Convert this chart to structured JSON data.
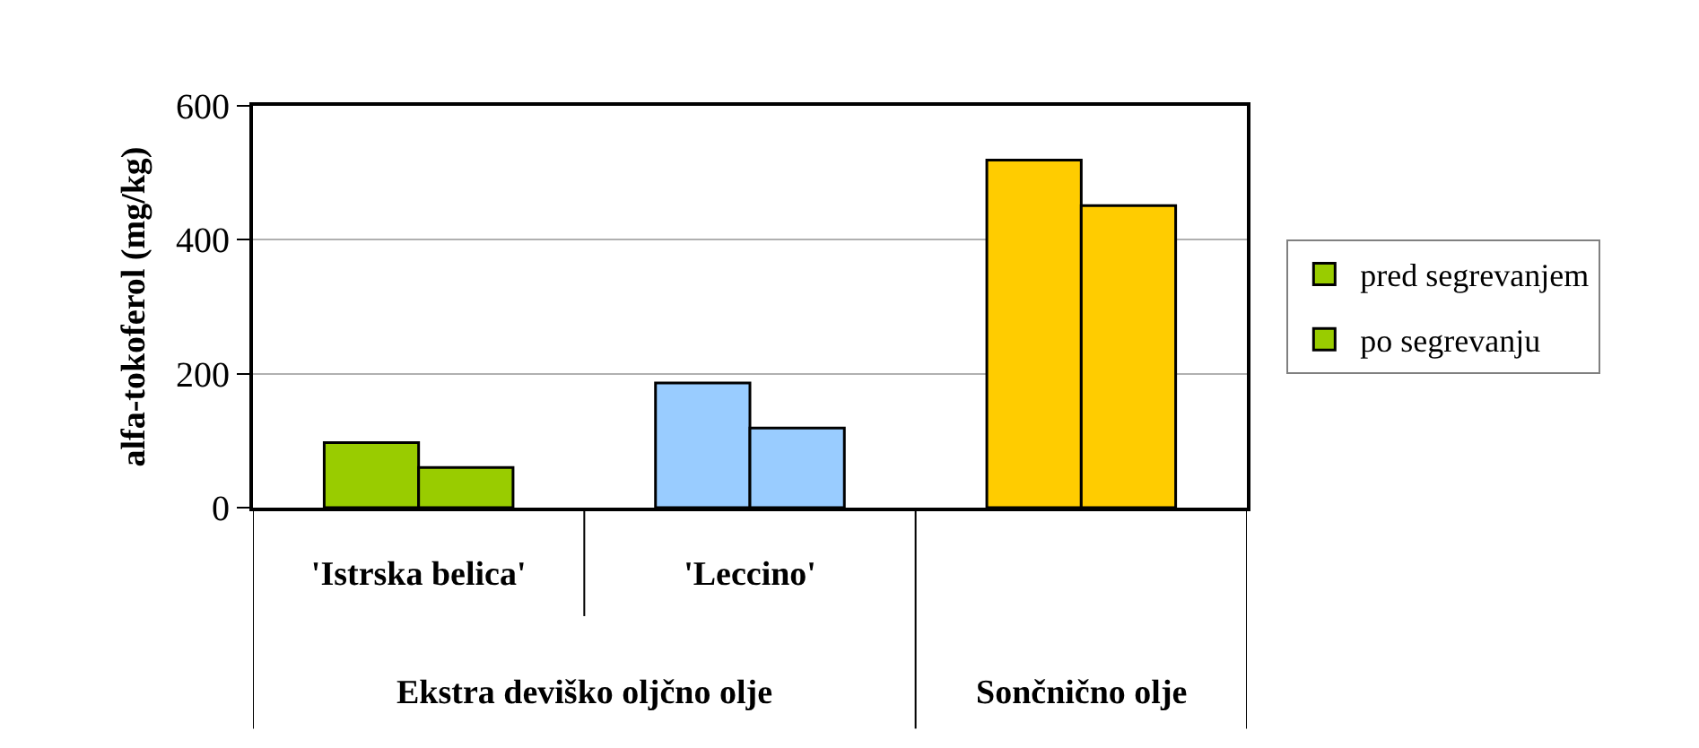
{
  "chart_data": {
    "type": "bar",
    "ylabel": "alfa-tokoferol (mg/kg)",
    "categories": [
      "'Istrska belica'",
      "'Leccino'",
      null
    ],
    "series": [
      {
        "name": "pred segrevanjem",
        "colors": [
          "#99cc00",
          "#99ccff",
          "#ffcc00"
        ],
        "values": [
          97,
          186,
          519
        ]
      },
      {
        "name": "po segrevanju",
        "colors": [
          "#99cc00",
          "#99ccff",
          "#ffcc00"
        ],
        "values": [
          60,
          119,
          451
        ]
      }
    ],
    "ylim": [
      0,
      600
    ],
    "yticks": [
      0,
      200,
      400,
      600
    ],
    "grid": "y",
    "legend": "right",
    "annotations": [
      "Ekstra deviško oljčno olje",
      "Sončnično olje"
    ]
  }
}
